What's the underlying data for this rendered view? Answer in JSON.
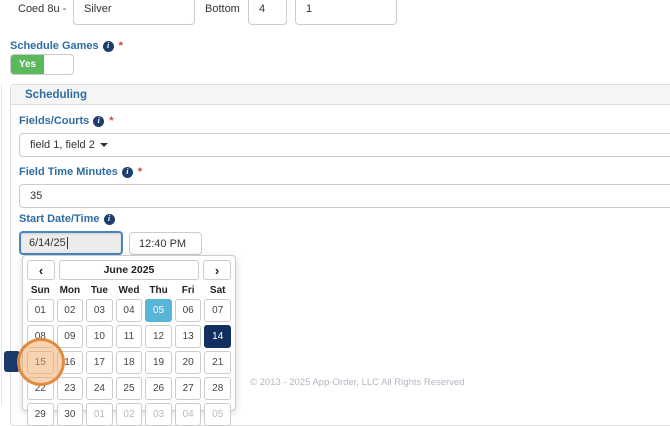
{
  "top_form": {
    "division_label": "Coed 8u -",
    "name_value": "Silver",
    "bracket_label": "Bottom",
    "num_value_1": "4",
    "num_value_2": "1"
  },
  "schedule_games": {
    "label": "Schedule Games",
    "required_mark": "*",
    "toggle_on_label": "Yes"
  },
  "scheduling_panel": {
    "title": "Scheduling",
    "fields_courts": {
      "label": "Fields/Courts",
      "required_mark": "*",
      "value": "field 1, field 2"
    },
    "field_time_minutes": {
      "label": "Field Time Minutes",
      "required_mark": "*",
      "value": "35"
    },
    "start_date_time": {
      "label": "Start Date/Time",
      "date_value": "6/14/25",
      "time_value": "12:40 PM"
    }
  },
  "calendar": {
    "prev_icon": "‹",
    "next_icon": "›",
    "month_label": "June 2025",
    "weekdays": [
      "Sun",
      "Mon",
      "Tue",
      "Wed",
      "Thu",
      "Fri",
      "Sat"
    ],
    "weeks": [
      [
        {
          "label": "01",
          "state": "default"
        },
        {
          "label": "02",
          "state": "default"
        },
        {
          "label": "03",
          "state": "default"
        },
        {
          "label": "04",
          "state": "default"
        },
        {
          "label": "05",
          "state": "today"
        },
        {
          "label": "06",
          "state": "default"
        },
        {
          "label": "07",
          "state": "default"
        }
      ],
      [
        {
          "label": "08",
          "state": "default"
        },
        {
          "label": "09",
          "state": "default"
        },
        {
          "label": "10",
          "state": "default"
        },
        {
          "label": "11",
          "state": "default"
        },
        {
          "label": "12",
          "state": "default"
        },
        {
          "label": "13",
          "state": "default"
        },
        {
          "label": "14",
          "state": "selected"
        }
      ],
      [
        {
          "label": "15",
          "state": "default"
        },
        {
          "label": "16",
          "state": "default"
        },
        {
          "label": "17",
          "state": "default"
        },
        {
          "label": "18",
          "state": "default"
        },
        {
          "label": "19",
          "state": "default"
        },
        {
          "label": "20",
          "state": "default"
        },
        {
          "label": "21",
          "state": "default"
        }
      ],
      [
        {
          "label": "22",
          "state": "default"
        },
        {
          "label": "23",
          "state": "default"
        },
        {
          "label": "24",
          "state": "default"
        },
        {
          "label": "25",
          "state": "default"
        },
        {
          "label": "26",
          "state": "default"
        },
        {
          "label": "27",
          "state": "default"
        },
        {
          "label": "28",
          "state": "default"
        }
      ],
      [
        {
          "label": "29",
          "state": "default"
        },
        {
          "label": "30",
          "state": "default"
        },
        {
          "label": "01",
          "state": "muted"
        },
        {
          "label": "02",
          "state": "muted"
        },
        {
          "label": "03",
          "state": "muted"
        },
        {
          "label": "04",
          "state": "muted"
        },
        {
          "label": "05",
          "state": "muted"
        }
      ]
    ],
    "today_color": "#57b5d8",
    "selected_color": "#12305f",
    "click_target_day": "15"
  },
  "footer": {
    "copyright": "© 2013 - 2025 App-Order, LLC All Rights Reserved"
  },
  "colors": {
    "label_blue": "#2e6da4",
    "toggle_green": "#5cb85c",
    "info_icon_navy": "#1c3e6e",
    "required_red": "#d43f3a",
    "click_indicator_orange": "#e08a3c"
  }
}
